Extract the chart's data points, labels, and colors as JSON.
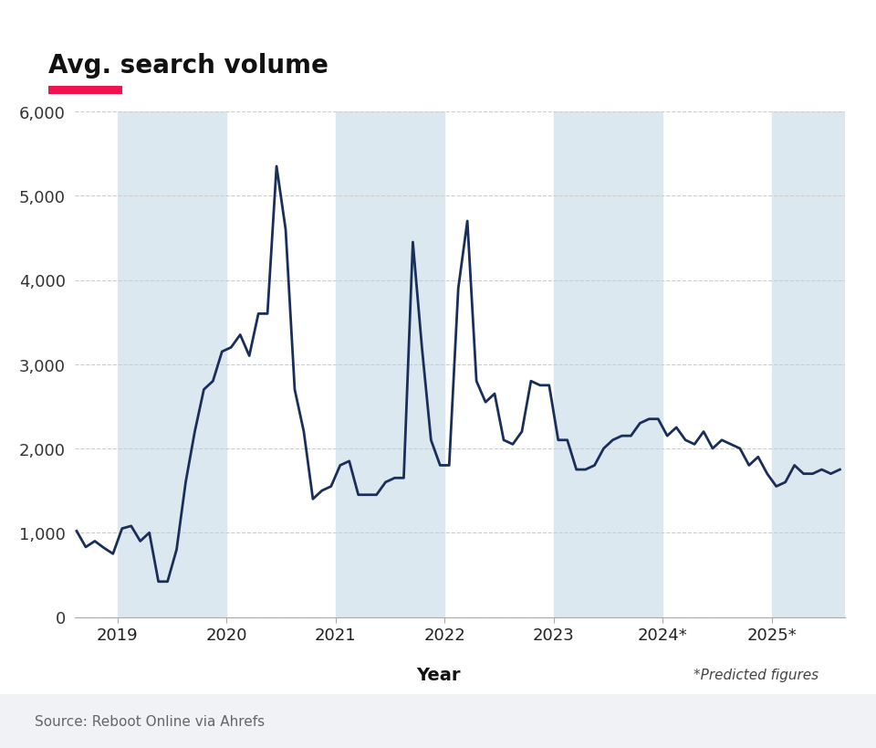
{
  "title": "Avg. search volume",
  "title_underline_color": "#f0134d",
  "xlabel": "Year",
  "background_color": "#ffffff",
  "plot_bg_color": "#ffffff",
  "band_color": "#dce8f0",
  "line_color": "#1a2e5a",
  "line_width": 2.0,
  "ylim": [
    0,
    6000
  ],
  "yticks": [
    0,
    1000,
    2000,
    3000,
    4000,
    5000,
    6000
  ],
  "source_text": "Source: Reboot Online via Ahrefs",
  "predicted_text": "*Predicted figures",
  "footer_color": "#f0f2f5",
  "xtick_labels": [
    "2019",
    "2020",
    "2021",
    "2022",
    "2023",
    "2024*",
    "2025*"
  ],
  "data_points": [
    1020,
    830,
    900,
    820,
    750,
    1050,
    1080,
    900,
    1000,
    420,
    420,
    800,
    1600,
    2200,
    2700,
    2800,
    3150,
    3200,
    3350,
    3100,
    3600,
    3600,
    5350,
    4600,
    2700,
    2200,
    1400,
    1500,
    1550,
    1800,
    1850,
    1450,
    1450,
    1450,
    1600,
    1650,
    1650,
    4450,
    3200,
    2100,
    1800,
    1800,
    3900,
    4700,
    2800,
    2550,
    2650,
    2100,
    2050,
    2200,
    2800,
    2750,
    2750,
    2100,
    2100,
    1750,
    1750,
    1800,
    2000,
    2100,
    2150,
    2150,
    2300,
    2350,
    2350,
    2150,
    2250,
    2100,
    2050,
    2200,
    2000,
    2100,
    2050,
    2000,
    1800,
    1900,
    1700,
    1550,
    1600,
    1800,
    1700,
    1700,
    1750,
    1700,
    1750
  ],
  "n_points": 85,
  "start_month": 8,
  "start_year": 2018,
  "shaded_year_starts": [
    2019,
    2021,
    2023,
    2025
  ],
  "xtick_years": [
    2019,
    2020,
    2021,
    2022,
    2023,
    2024,
    2025
  ]
}
